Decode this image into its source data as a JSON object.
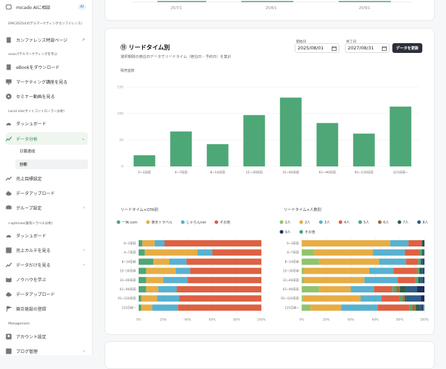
{
  "sidebar": {
    "ai_label": "micado AIに相談",
    "ai_badge": "AI",
    "sec1": "EMC2025(Eのデルマーケティングカンファレンス)",
    "conf_page": "カンファレンス特設ページ",
    "sec2": "ecoxパデルマーケティングを学ぶ",
    "ebook": "eBookをダウンロード",
    "course": "マーケティング講座を見る",
    "seminar": "セミナー動画を見る",
    "sec3": "Lecid Lite(サイトコントローラー分析)",
    "dashboard1": "ダッシュボード",
    "data_analysis": "データ分析",
    "daily": "日報速成",
    "analysis": "分析",
    "sales_goal": "売上目標設定",
    "data_upload1": "データアップロード",
    "group": "グループ設定",
    "sec4": "r-optimise(販売トラベル分析)",
    "dashboard2": "ダッシュボード",
    "karte": "売上カルテを見る",
    "data_only": "データだけを見る",
    "knowhow": "ノウハウを学ぶ",
    "data_upload2": "データアップロード",
    "competitor": "競合施設の登録",
    "sec5": "Management",
    "account": "アカウント設定",
    "blog": "ブログ管理"
  },
  "top_card": {
    "tick_labels": [
      "25/7/1",
      "25/8/1",
      "25/9/1"
    ]
  },
  "card": {
    "title": "⑪ リードタイム別",
    "subtitle": "選択期間の宿泊日データでリードタイム（宿泊日 - 予約日）を集計",
    "start_label": "開始日",
    "start_value": "2025/08/01",
    "end_label": "終了日",
    "end_value": "2027/08/31",
    "update_button": "データを更新"
  },
  "colors": {
    "green": "#4ea776",
    "orange": "#e7ad44",
    "blue": "#58b1cf",
    "red": "#dd6142",
    "lightgreen": "#8fc46c",
    "brown": "#9c6f3a",
    "darkgreen": "#2d5e46",
    "darkblue": "#2c5e8a",
    "navy": "#1d2e5c",
    "teal": "#4d9b8a"
  },
  "chart_data": [
    {
      "type": "bar",
      "ylabel": "販売室数",
      "ylim": [
        0,
        150
      ],
      "yticks": [
        "0",
        "50",
        "100",
        "150"
      ],
      "categories": [
        "0~3日前",
        "4~7日前",
        "8~14日前",
        "15~30日前",
        "31~60日前",
        "61~90日前",
        "91~120日前",
        "121日前~"
      ],
      "values": [
        21,
        66,
        42,
        97,
        130,
        82,
        62,
        113
      ]
    },
    {
      "type": "bar",
      "title": "リードタイム×OTA別",
      "categories": [
        "0~3日前",
        "4~7日前",
        "8~14日前",
        "15~30日前",
        "31~60日前",
        "61~90日前",
        "91~120日前",
        "121日前~"
      ],
      "xticks": [
        "0%",
        "20%",
        "40%",
        "60%",
        "80%",
        "100%"
      ],
      "series": [
        {
          "name": "一休.com",
          "values": [
            3,
            5,
            12,
            6,
            6,
            6,
            2,
            2
          ]
        },
        {
          "name": "楽天トラベル",
          "values": [
            10,
            43,
            13,
            24,
            14,
            10,
            13,
            9
          ]
        },
        {
          "name": "じゃらんnet",
          "values": [
            8,
            12,
            14,
            12,
            20,
            15,
            18,
            21
          ]
        },
        {
          "name": "その他",
          "values": [
            79,
            40,
            61,
            58,
            60,
            69,
            67,
            68
          ]
        }
      ]
    },
    {
      "type": "bar",
      "title": "リードタイム×人数別",
      "categories": [
        "0~3日前",
        "4~7日前",
        "8~14日前",
        "15~30日前",
        "31~60日前",
        "61~90日前",
        "91~120日前",
        "121日前~"
      ],
      "xticks": [
        "0%",
        "20%",
        "40%",
        "60%",
        "80%",
        "100%"
      ],
      "series": [
        {
          "name": "1人",
          "values": [
            0,
            10,
            14,
            2,
            2,
            14,
            1,
            7
          ]
        },
        {
          "name": "2人",
          "values": [
            72,
            48,
            49,
            53,
            49,
            26,
            47,
            25
          ]
        },
        {
          "name": "3人",
          "values": [
            15,
            26,
            22,
            20,
            27,
            19,
            17,
            30
          ]
        },
        {
          "name": "4人",
          "values": [
            11,
            12,
            10,
            19,
            15,
            15,
            15,
            26
          ]
        },
        {
          "name": "5人",
          "values": [
            0,
            2,
            2,
            2,
            2,
            3,
            2,
            2
          ]
        },
        {
          "name": "6人",
          "values": [
            0,
            0,
            0,
            0,
            0,
            3,
            2,
            3
          ]
        },
        {
          "name": "7人",
          "values": [
            1,
            1,
            1,
            2,
            2,
            5,
            1,
            3
          ]
        },
        {
          "name": "8人",
          "values": [
            0,
            1,
            1,
            1,
            2,
            9,
            12,
            2
          ]
        },
        {
          "name": "9人",
          "values": [
            1,
            0,
            1,
            1,
            1,
            6,
            3,
            1
          ]
        },
        {
          "name": "その他",
          "values": [
            0,
            0,
            0,
            0,
            0,
            0,
            0,
            1
          ]
        }
      ]
    }
  ]
}
